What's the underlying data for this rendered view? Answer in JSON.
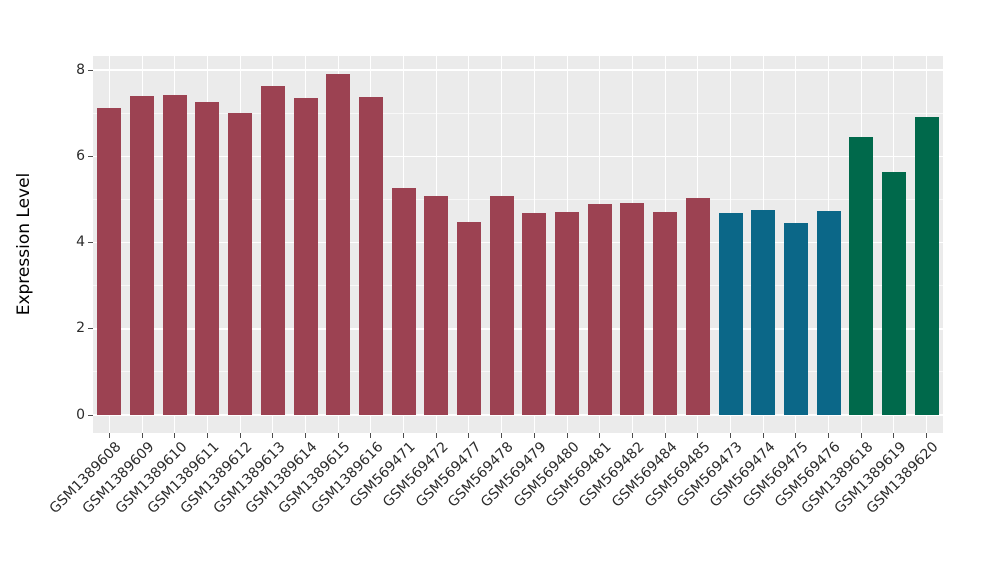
{
  "figure": {
    "title": "",
    "y_axis_title": "Expression Level",
    "panel_background_color": "#EBEBEB",
    "gridline_color": "#FFFFFF",
    "axis_text_color": "#2B2B2B",
    "tick_mark_color": "#4D4D4D"
  },
  "chart_data": {
    "type": "bar",
    "title": "",
    "xlabel": "",
    "ylabel": "Expression Level",
    "grid": true,
    "legend": false,
    "ylim": [
      -0.42,
      8.74
    ],
    "ytick_values": [
      0,
      2,
      4,
      6,
      8
    ],
    "ytick_labels": [
      "0",
      "2",
      "4",
      "6",
      "8"
    ],
    "yminor_values": [
      1,
      3,
      5,
      7
    ],
    "categories": [
      "GSM1389608",
      "GSM1389609",
      "GSM1389610",
      "GSM1389611",
      "GSM1389612",
      "GSM1389613",
      "GSM1389614",
      "GSM1389615",
      "GSM1389616",
      "GSM569471",
      "GSM569472",
      "GSM569477",
      "GSM569478",
      "GSM569479",
      "GSM569480",
      "GSM569481",
      "GSM569482",
      "GSM569484",
      "GSM569485",
      "GSM569473",
      "GSM569474",
      "GSM569475",
      "GSM569476",
      "GSM1389618",
      "GSM1389619",
      "GSM1389620"
    ],
    "values": [
      7.13,
      7.39,
      7.43,
      7.25,
      7.01,
      7.62,
      7.36,
      7.9,
      7.37,
      5.26,
      5.07,
      4.48,
      5.08,
      4.68,
      4.7,
      4.9,
      4.91,
      4.71,
      5.03,
      4.68,
      4.76,
      4.45,
      4.73,
      6.45,
      5.63,
      6.92
    ],
    "groups": [
      "group1",
      "group1",
      "group1",
      "group1",
      "group1",
      "group1",
      "group1",
      "group1",
      "group1",
      "group1",
      "group1",
      "group1",
      "group1",
      "group1",
      "group1",
      "group1",
      "group1",
      "group1",
      "group1",
      "group2",
      "group2",
      "group2",
      "group2",
      "group3",
      "group3",
      "group3"
    ],
    "group_colors": {
      "group1": "#9C4252",
      "group2": "#0B6788",
      "group3": "#00694B"
    }
  }
}
